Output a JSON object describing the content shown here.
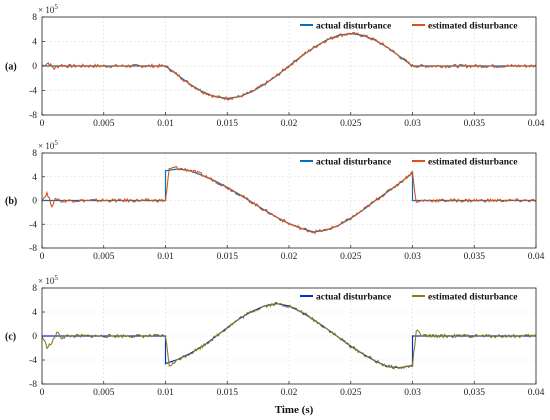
{
  "xlabel": "Time (s)",
  "chart_data": [
    {
      "type": "line",
      "panel_label": "(a)",
      "y_multiplier_base": "× 10",
      "y_multiplier_exp": "5",
      "xlim": [
        0,
        0.04
      ],
      "ylim": [
        -8,
        8
      ],
      "x_ticks": [
        "0",
        "0.005",
        "0.01",
        "0.015",
        "0.02",
        "0.025",
        "0.03",
        "0.035",
        "0.04"
      ],
      "y_ticks": [
        "8",
        "4",
        "0",
        "-4",
        "-8"
      ],
      "grid": true,
      "legend_position": "top-right",
      "series": [
        {
          "name": "actual disturbance",
          "color": "#0072BD",
          "x": [
            0,
            0.01,
            0.011,
            0.012,
            0.013,
            0.014,
            0.015,
            0.016,
            0.017,
            0.018,
            0.019,
            0.02,
            0.021,
            0.022,
            0.023,
            0.024,
            0.025,
            0.026,
            0.027,
            0.028,
            0.029,
            0.03,
            0.04
          ],
          "values": [
            0,
            0,
            -1.5,
            -3,
            -4.2,
            -5,
            -5.3,
            -5,
            -4.2,
            -3,
            -1.6,
            0,
            1.6,
            3,
            4.2,
            5,
            5.3,
            5,
            4.2,
            3,
            1.5,
            0,
            0
          ]
        },
        {
          "name": "estimated disturbance",
          "color": "#D95319",
          "x": [
            0,
            0.0005,
            0.001,
            0.0015,
            0.002,
            0.01,
            0.011,
            0.012,
            0.013,
            0.014,
            0.015,
            0.016,
            0.017,
            0.018,
            0.019,
            0.02,
            0.021,
            0.022,
            0.023,
            0.024,
            0.025,
            0.026,
            0.027,
            0.028,
            0.029,
            0.03,
            0.04
          ],
          "values": [
            0,
            0.5,
            -0.4,
            0.2,
            0,
            0,
            -1.5,
            -3,
            -4.2,
            -5,
            -5.3,
            -5,
            -4.2,
            -3,
            -1.6,
            0,
            1.6,
            3,
            4.2,
            5,
            5.3,
            5,
            4.2,
            3,
            1.5,
            0,
            0
          ]
        }
      ]
    },
    {
      "type": "line",
      "panel_label": "(b)",
      "y_multiplier_base": "× 10",
      "y_multiplier_exp": "5",
      "xlim": [
        0,
        0.04
      ],
      "ylim": [
        -8,
        8
      ],
      "x_ticks": [
        "0",
        "0.005",
        "0.01",
        "0.015",
        "0.02",
        "0.025",
        "0.03",
        "0.035",
        "0.04"
      ],
      "y_ticks": [
        "8",
        "4",
        "0",
        "-4",
        "-8"
      ],
      "grid": true,
      "legend_position": "top-right",
      "series": [
        {
          "name": "actual disturbance",
          "color": "#0072BD",
          "x": [
            0,
            0.01,
            0.01,
            0.011,
            0.012,
            0.013,
            0.014,
            0.015,
            0.016,
            0.017,
            0.018,
            0.019,
            0.02,
            0.021,
            0.022,
            0.023,
            0.024,
            0.025,
            0.026,
            0.027,
            0.028,
            0.029,
            0.03,
            0.03,
            0.04
          ],
          "values": [
            0,
            0,
            5,
            5.3,
            5,
            4.2,
            3.3,
            2.2,
            1,
            -0.3,
            -1.6,
            -2.8,
            -3.9,
            -4.7,
            -5.3,
            -5,
            -4.2,
            -3,
            -1.6,
            0,
            1.5,
            3,
            4.6,
            0,
            0
          ]
        },
        {
          "name": "estimated disturbance",
          "color": "#D95319",
          "x": [
            0,
            0.0004,
            0.0008,
            0.0012,
            0.0016,
            0.002,
            0.01,
            0.0103,
            0.0108,
            0.011,
            0.012,
            0.013,
            0.014,
            0.015,
            0.016,
            0.017,
            0.018,
            0.019,
            0.02,
            0.021,
            0.022,
            0.023,
            0.024,
            0.025,
            0.026,
            0.027,
            0.028,
            0.029,
            0.03,
            0.0303,
            0.0308,
            0.04
          ],
          "values": [
            0,
            1.2,
            -0.8,
            0.4,
            -0.2,
            0,
            0,
            5.2,
            5.6,
            5.4,
            5.1,
            4.3,
            3.3,
            2.2,
            1,
            -0.3,
            -1.6,
            -2.8,
            -3.9,
            -4.7,
            -5.3,
            -5,
            -4.2,
            -3,
            -1.6,
            0,
            1.5,
            3,
            4.8,
            -0.4,
            0,
            0
          ]
        }
      ]
    },
    {
      "type": "line",
      "panel_label": "(c)",
      "y_multiplier_base": "× 10",
      "y_multiplier_exp": "5",
      "xlim": [
        0,
        0.04
      ],
      "ylim": [
        -8,
        8
      ],
      "x_ticks": [
        "0",
        "0.005",
        "0.01",
        "0.015",
        "0.02",
        "0.025",
        "0.03",
        "0.035",
        "0.04"
      ],
      "y_ticks": [
        "8",
        "4",
        "0",
        "-4",
        "-8"
      ],
      "grid": true,
      "legend_position": "top-right",
      "series": [
        {
          "name": "actual disturbance",
          "color": "#0033CC",
          "x": [
            0,
            0.01,
            0.01,
            0.011,
            0.012,
            0.013,
            0.014,
            0.015,
            0.016,
            0.017,
            0.018,
            0.019,
            0.02,
            0.021,
            0.022,
            0.023,
            0.024,
            0.025,
            0.026,
            0.027,
            0.028,
            0.029,
            0.03,
            0.03,
            0.04
          ],
          "values": [
            0,
            0,
            -4.6,
            -3.9,
            -2.9,
            -1.7,
            -0.2,
            1.4,
            2.9,
            4.1,
            5,
            5.4,
            5,
            4,
            2.7,
            1.3,
            -0.2,
            -1.7,
            -3,
            -4.2,
            -5.1,
            -5.3,
            -4.9,
            0,
            0
          ]
        },
        {
          "name": "estimated disturbance",
          "color": "#8B7D1A",
          "x": [
            0,
            0.0004,
            0.0008,
            0.0012,
            0.0016,
            0.002,
            0.01,
            0.0103,
            0.0108,
            0.011,
            0.012,
            0.013,
            0.014,
            0.015,
            0.016,
            0.017,
            0.018,
            0.019,
            0.02,
            0.021,
            0.022,
            0.023,
            0.024,
            0.025,
            0.026,
            0.027,
            0.028,
            0.029,
            0.03,
            0.0303,
            0.0308,
            0.04
          ],
          "values": [
            0,
            -1.8,
            -1.2,
            0.6,
            -0.3,
            0,
            0,
            -4.9,
            -4.4,
            -3.9,
            -2.9,
            -1.7,
            -0.2,
            1.4,
            2.9,
            4.1,
            5,
            5.4,
            5,
            4,
            2.7,
            1.3,
            -0.2,
            -1.7,
            -3,
            -4.2,
            -5.1,
            -5.3,
            -5,
            0.9,
            0,
            0
          ]
        }
      ]
    }
  ]
}
